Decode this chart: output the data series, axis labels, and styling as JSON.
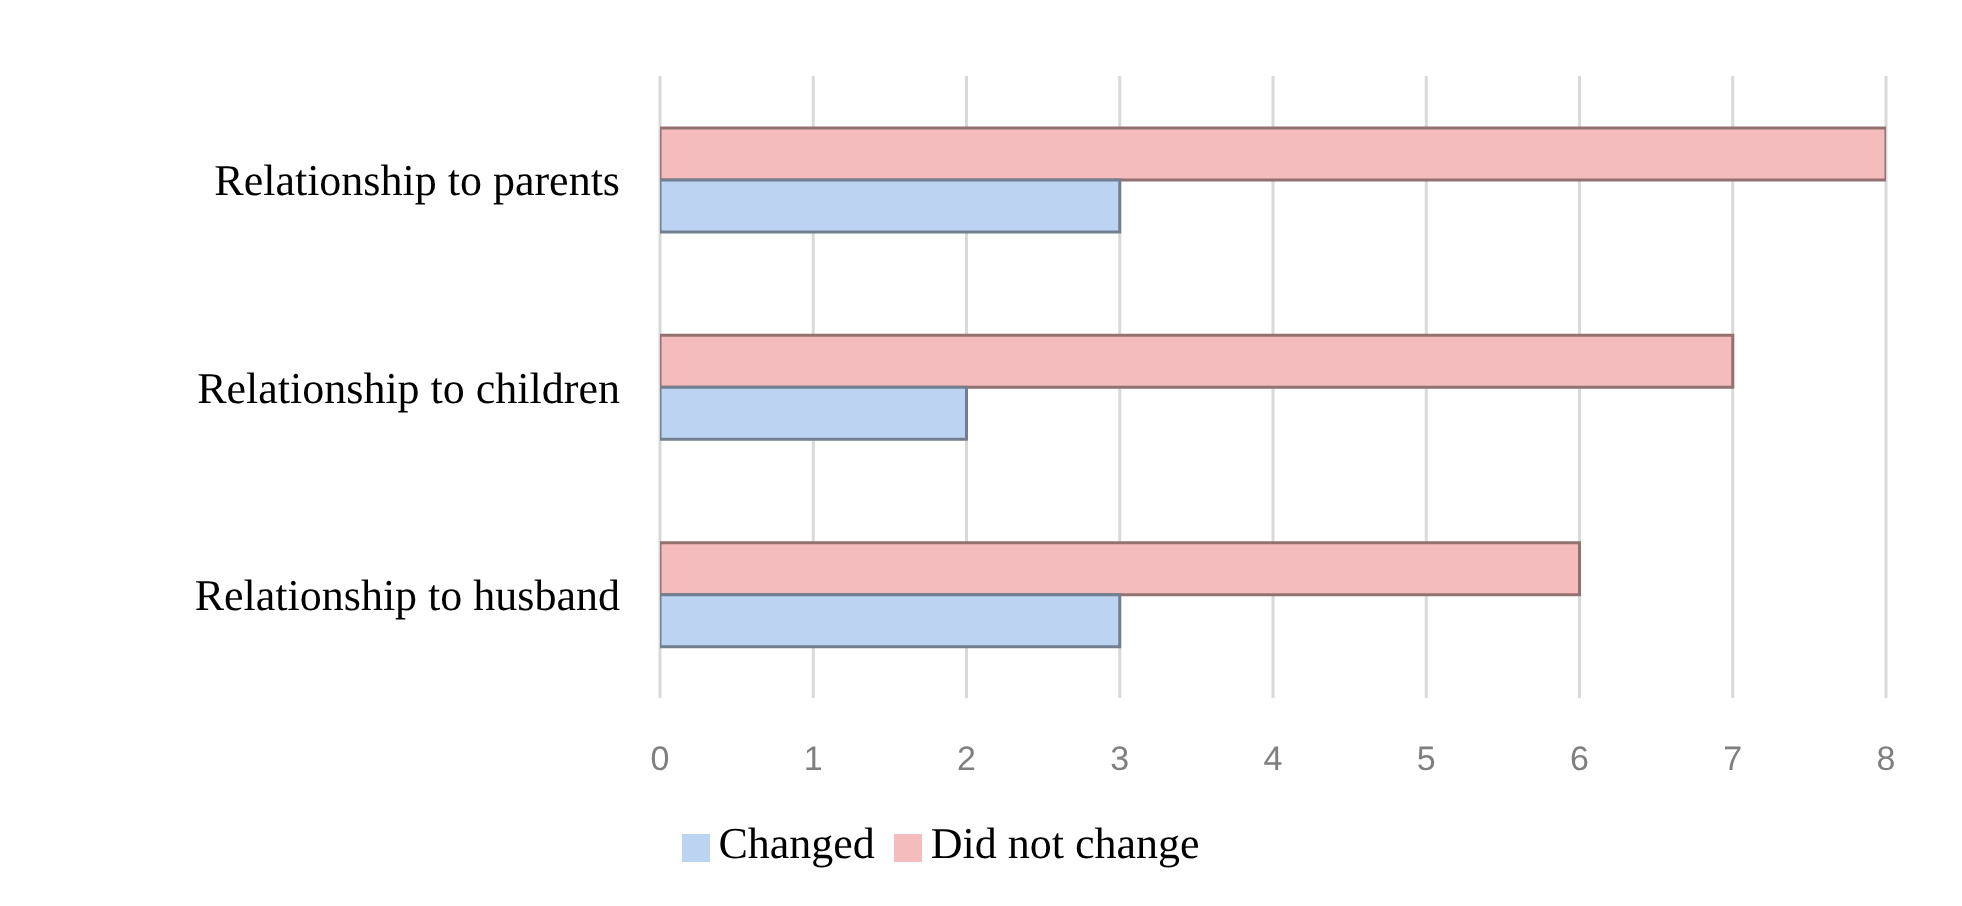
{
  "chart_data": {
    "type": "bar",
    "orientation": "horizontal",
    "categories": [
      "Relationship to parents",
      "Relationship to children",
      "Relationship to husband"
    ],
    "series": [
      {
        "name": "Did not change",
        "color": "#f4bcbc",
        "values": [
          8,
          7,
          6
        ]
      },
      {
        "name": "Changed",
        "color": "#bcd3f2",
        "values": [
          3,
          2,
          3
        ]
      }
    ],
    "xlim": [
      0,
      8
    ],
    "xticks": [
      0,
      1,
      2,
      3,
      4,
      5,
      6,
      7,
      8
    ],
    "grid": "x",
    "legend": "bottom"
  }
}
